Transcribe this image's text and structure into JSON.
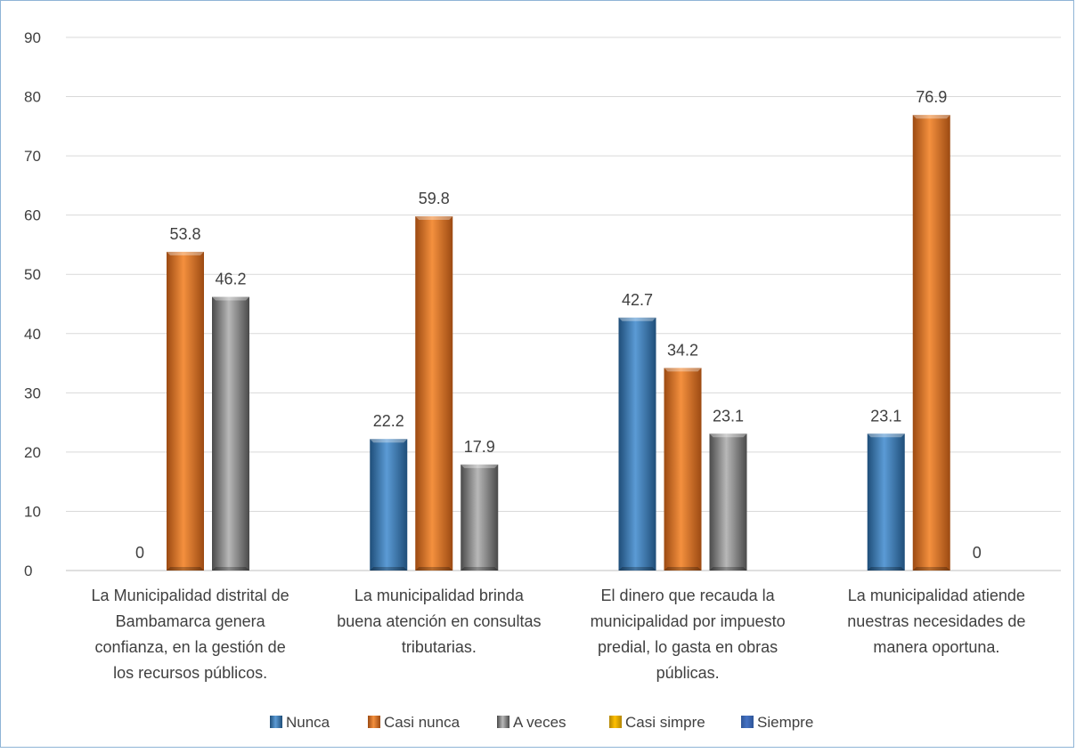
{
  "chart_data": {
    "type": "bar",
    "title": "",
    "xlabel": "",
    "ylabel": "",
    "ylim": [
      0,
      90
    ],
    "yticks": [
      0,
      10,
      20,
      30,
      40,
      50,
      60,
      70,
      80,
      90
    ],
    "grid": true,
    "legend_position": "bottom",
    "categories": [
      [
        "La Municipalidad distrital de",
        "Bambamarca genera",
        "confianza, en la gestión de",
        "los recursos públicos."
      ],
      [
        "La municipalidad brinda",
        "buena atención en consultas",
        "tributarias."
      ],
      [
        "El dinero que recauda la",
        "municipalidad por impuesto",
        "predial, lo gasta en obras",
        "públicas."
      ],
      [
        "La municipalidad atiende",
        "nuestras necesidades de",
        "manera oportuna."
      ]
    ],
    "series": [
      {
        "name": "Nunca",
        "color": "#4a8fd4",
        "values": [
          0,
          22.2,
          42.7,
          23.1
        ]
      },
      {
        "name": "Casi nunca",
        "color": "#ed7d31",
        "values": [
          53.8,
          59.8,
          34.2,
          76.9
        ]
      },
      {
        "name": "A veces",
        "color": "#a5a5a5",
        "values": [
          46.2,
          17.9,
          23.1,
          0
        ]
      },
      {
        "name": "Casi simpre",
        "color": "#ffc000",
        "values": [
          null,
          null,
          null,
          null
        ]
      },
      {
        "name": "Siempre",
        "color": "#4472c4",
        "values": [
          null,
          null,
          null,
          null
        ]
      }
    ]
  }
}
